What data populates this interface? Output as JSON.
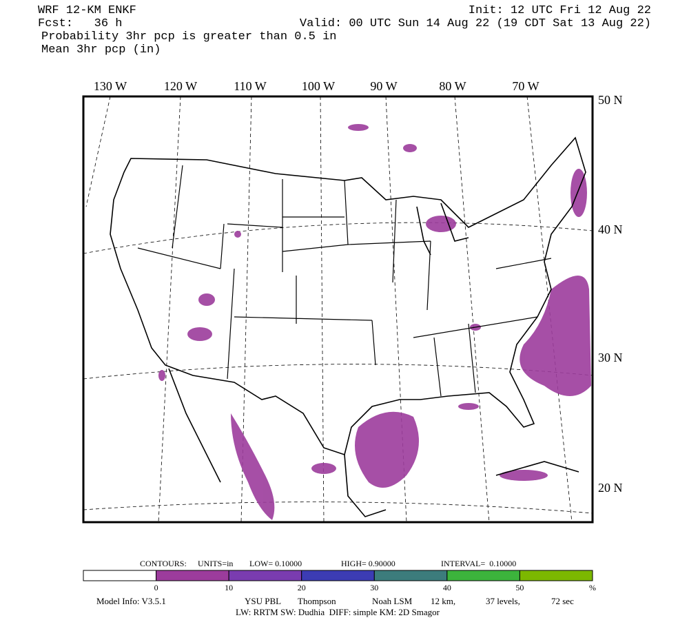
{
  "header": {
    "model": "WRF 12-KM ENKF",
    "init": "Init: 12 UTC Fri 12 Aug 22",
    "forecast": "Fcst:   36 h",
    "valid": "Valid: 00 UTC Sun 14 Aug 22 (19 CDT Sat 13 Aug 22)",
    "field1": "Probability 3hr pcp is greater than 0.5 in",
    "field2": "Mean 3hr pcp (in)"
  },
  "map": {
    "longitudes": [
      "130 W",
      "120 W",
      "110 W",
      "100 W",
      "90 W",
      "80 W",
      "70 W"
    ],
    "latitudes": [
      "50 N",
      "40 N",
      "30 N",
      "20 N"
    ]
  },
  "contours": {
    "label": "CONTOURS:",
    "units": "UNITS=in",
    "low": "LOW= 0.10000",
    "high": "HIGH= 0.90000",
    "interval": "INTERVAL=  0.10000"
  },
  "colorbar": {
    "colors": [
      "#ffffff",
      "#9c3c9c",
      "#7a3cb0",
      "#3c3cb4",
      "#3c7c7c",
      "#3cb43c",
      "#7cb800"
    ],
    "labels": [
      "0",
      "10",
      "20",
      "30",
      "40",
      "50",
      "%"
    ]
  },
  "footer": {
    "model_info": "Model Info: V3.5.1",
    "pbl": "YSU PBL",
    "micro": "Thompson",
    "lsm": "Noah LSM",
    "resolution": "12 km,",
    "levels": "37 levels,",
    "timestep": "72 sec",
    "physics": "LW: RRTM SW: Dudhia  DIFF: simple KM: 2D Smagor"
  }
}
